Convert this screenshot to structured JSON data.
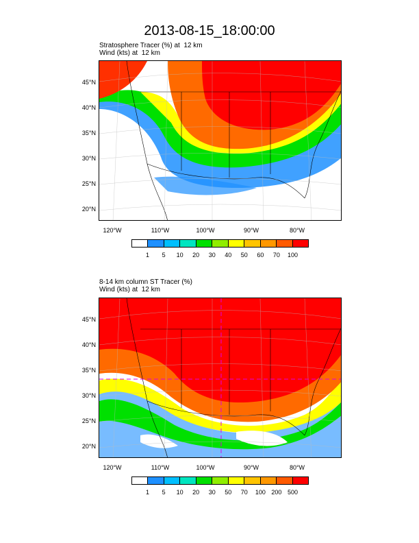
{
  "title": "2013-08-15_18:00:00",
  "panel1": {
    "line1_name": "Stratosphere Tracer",
    "line1_unit": "(%)",
    "line1_level": "at  12 km",
    "line2_name": "Wind",
    "line2_unit": "(kts)",
    "line2_level": "at  12 km",
    "colorbar_labels": [
      "1",
      "5",
      "10",
      "20",
      "30",
      "40",
      "50",
      "60",
      "70",
      "100"
    ]
  },
  "panel2": {
    "line1_name": "8-14 km column ST Tracer",
    "line1_unit": "(%)",
    "line1_level": "",
    "line2_name": "Wind",
    "line2_unit": "(kts)",
    "line2_level": "at  12 km",
    "colorbar_labels": [
      "1",
      "5",
      "10",
      "20",
      "30",
      "50",
      "70",
      "100",
      "200",
      "500"
    ]
  },
  "lat_labels": [
    "45°N",
    "40°N",
    "35°N",
    "30°N",
    "25°N",
    "20°N"
  ],
  "lon_labels": [
    "120°W",
    "110°W",
    "100°W",
    "90°W",
    "80°W"
  ],
  "colorbar_colors": [
    "#ffffff",
    "#1e90ff",
    "#00bfff",
    "#00e5c0",
    "#00e000",
    "#90ee00",
    "#ffff00",
    "#ffc400",
    "#ff9800",
    "#ff5a00",
    "#ff0000"
  ],
  "map_extent": {
    "lon_min": -125,
    "lon_max": -72,
    "lat_min": 18,
    "lat_max": 49
  },
  "chart_data": [
    {
      "type": "heatmap",
      "field": "Stratosphere Tracer",
      "units": "%",
      "level": "12 km",
      "contour_levels": [
        1,
        5,
        10,
        20,
        30,
        40,
        50,
        60,
        70,
        100
      ],
      "xlabel": "",
      "ylabel": "",
      "xticks": [
        "120°W",
        "110°W",
        "100°W",
        "90°W",
        "80°W"
      ],
      "yticks": [
        "45°N",
        "40°N",
        "35°N",
        "30°N",
        "25°N",
        "20°N"
      ]
    },
    {
      "type": "heatmap",
      "field": "8-14 km column ST Tracer",
      "units": "%",
      "contour_levels": [
        1,
        5,
        10,
        20,
        30,
        50,
        70,
        100,
        200,
        500
      ],
      "xlabel": "",
      "ylabel": "",
      "xticks": [
        "120°W",
        "110°W",
        "100°W",
        "90°W",
        "80°W"
      ],
      "yticks": [
        "45°N",
        "40°N",
        "35°N",
        "30°N",
        "25°N",
        "20°N"
      ]
    }
  ]
}
